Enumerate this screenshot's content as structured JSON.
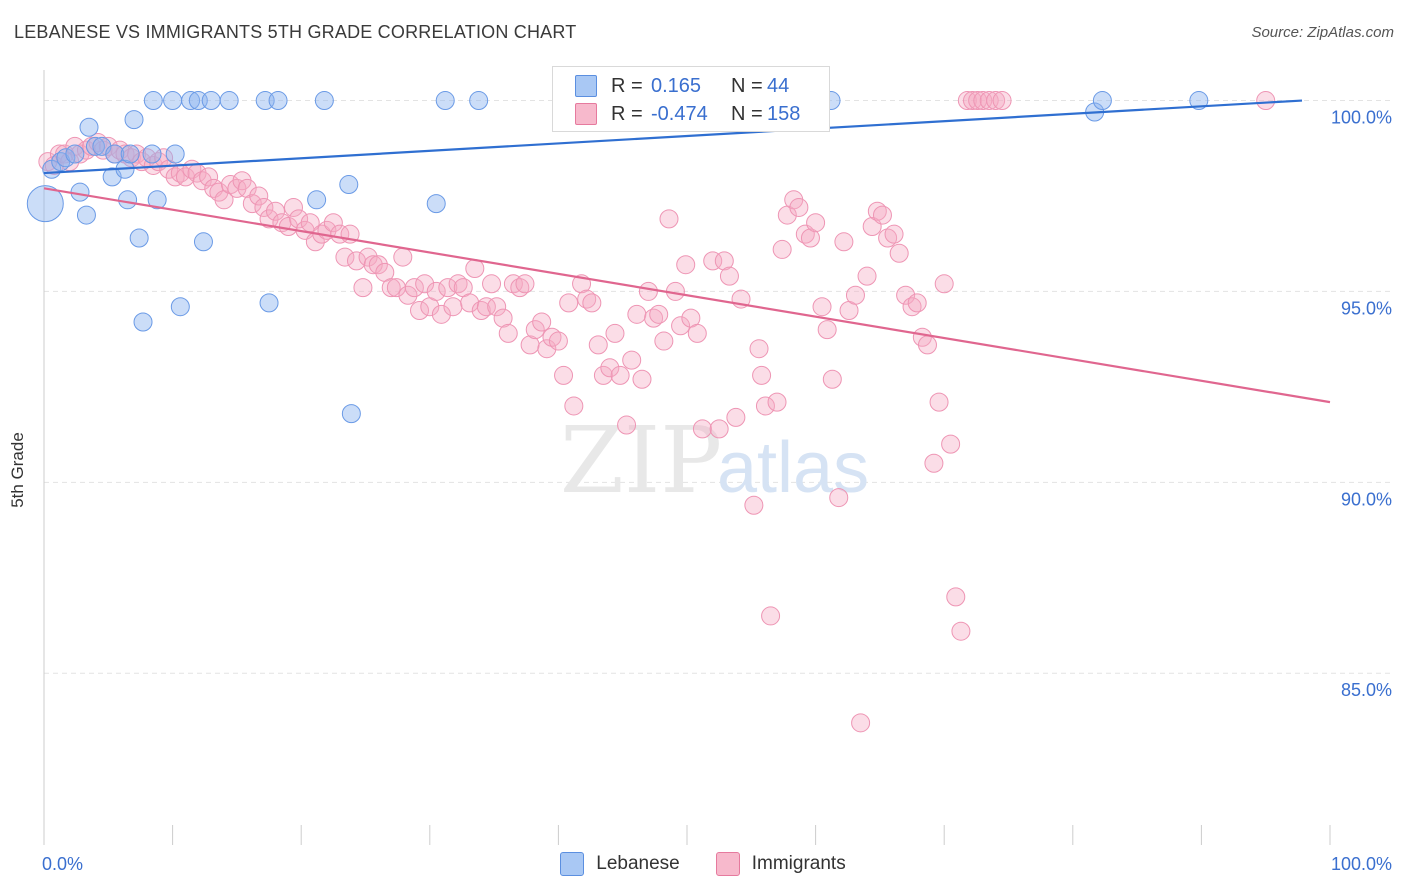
{
  "header": {
    "title": "LEBANESE VS IMMIGRANTS 5TH GRADE CORRELATION CHART",
    "source": "Source: ZipAtlas.com"
  },
  "watermark": {
    "zip": "ZIP",
    "atlas": "atlas"
  },
  "legend": {
    "rows": [
      {
        "r_label": "R =",
        "r_value": "0.165",
        "n_label": "N =",
        "n_value": "44",
        "color": "#a9c8f4",
        "border": "#5b8fe0"
      },
      {
        "r_label": "R =",
        "r_value": "-0.474",
        "n_label": "N =",
        "n_value": "158",
        "color": "#f7b9cc",
        "border": "#e67a9e"
      }
    ]
  },
  "bottom_legend": [
    {
      "label": "Lebanese",
      "color": "#a9c8f4",
      "border": "#5b8fe0"
    },
    {
      "label": "Immigrants",
      "color": "#f7b9cc",
      "border": "#e67a9e"
    }
  ],
  "chart_data": {
    "type": "scatter",
    "title": "LEBANESE VS IMMIGRANTS 5TH GRADE CORRELATION CHART",
    "xlabel": "",
    "ylabel": "5th Grade",
    "xlim": [
      0,
      100
    ],
    "ylim": [
      80.5,
      100.8
    ],
    "x_tick_labels": [
      {
        "v": 0,
        "label": "0.0%"
      },
      {
        "v": 100,
        "label": "100.0%"
      }
    ],
    "y_ticks": [
      {
        "v": 85,
        "label": "85.0%"
      },
      {
        "v": 90,
        "label": "90.0%"
      },
      {
        "v": 95,
        "label": "95.0%"
      },
      {
        "v": 100,
        "label": "100.0%"
      }
    ],
    "x_minor_ticks": [
      0,
      10,
      20,
      30,
      40,
      50,
      60,
      70,
      80,
      90,
      100
    ],
    "colors": {
      "lebanese_fill": "rgba(140,180,240,0.45)",
      "lebanese_stroke": "#6a9ae6",
      "lebanese_line": "#2f6fd1",
      "immigrants_fill": "rgba(245,170,195,0.40)",
      "immigrants_stroke": "#ee95b4",
      "immigrants_line": "#e0668f",
      "grid": "#e3e3e3",
      "tick_label": "#3a6fcf"
    },
    "series": [
      {
        "name": "Lebanese",
        "trend": {
          "x0": 0,
          "y0": 98.1,
          "x1": 100,
          "y1": 100.0
        },
        "points": [
          [
            0.1,
            97.3,
            2.0
          ],
          [
            0.6,
            98.2,
            1
          ],
          [
            1.3,
            98.4,
            1
          ],
          [
            1.7,
            98.5,
            1
          ],
          [
            2.4,
            98.6,
            1
          ],
          [
            2.8,
            97.6,
            1
          ],
          [
            3.3,
            97.0,
            1
          ],
          [
            3.5,
            99.3,
            1
          ],
          [
            4.0,
            98.8,
            1
          ],
          [
            4.5,
            98.8,
            1
          ],
          [
            5.5,
            98.6,
            1
          ],
          [
            5.3,
            98.0,
            1
          ],
          [
            6.3,
            98.2,
            1
          ],
          [
            6.7,
            98.6,
            1
          ],
          [
            6.5,
            97.4,
            1
          ],
          [
            7.0,
            99.5,
            1
          ],
          [
            7.4,
            96.4,
            1
          ],
          [
            7.7,
            94.2,
            1
          ],
          [
            8.4,
            98.6,
            1
          ],
          [
            8.5,
            100.0,
            1
          ],
          [
            8.8,
            97.4,
            1
          ],
          [
            10.0,
            100.0,
            1
          ],
          [
            10.2,
            98.6,
            1
          ],
          [
            10.6,
            94.6,
            1
          ],
          [
            11.4,
            100.0,
            1
          ],
          [
            12.0,
            100.0,
            1
          ],
          [
            12.4,
            96.3,
            1
          ],
          [
            13.0,
            100.0,
            1
          ],
          [
            14.4,
            100.0,
            1
          ],
          [
            17.2,
            100.0,
            1
          ],
          [
            17.5,
            94.7,
            1
          ],
          [
            18.2,
            100.0,
            1
          ],
          [
            21.2,
            97.4,
            1
          ],
          [
            21.8,
            100.0,
            1
          ],
          [
            23.7,
            97.8,
            1
          ],
          [
            23.9,
            91.8,
            1
          ],
          [
            30.5,
            97.3,
            1
          ],
          [
            31.2,
            100.0,
            1
          ],
          [
            33.8,
            100.0,
            1
          ],
          [
            56.0,
            99.7,
            1
          ],
          [
            61.2,
            100.0,
            1
          ],
          [
            81.7,
            99.7,
            1
          ],
          [
            82.3,
            100.0,
            1
          ],
          [
            89.8,
            100.0,
            1
          ]
        ]
      },
      {
        "name": "Immigrants",
        "trend": {
          "x0": 0,
          "y0": 97.7,
          "x1": 100,
          "y1": 92.1
        },
        "points": [
          [
            0.3,
            98.4
          ],
          [
            0.8,
            98.3
          ],
          [
            1.2,
            98.6
          ],
          [
            1.6,
            98.6
          ],
          [
            2.0,
            98.4
          ],
          [
            2.4,
            98.8
          ],
          [
            2.8,
            98.6
          ],
          [
            3.3,
            98.7
          ],
          [
            3.7,
            98.8
          ],
          [
            4.2,
            98.9
          ],
          [
            4.6,
            98.7
          ],
          [
            5.0,
            98.8
          ],
          [
            5.5,
            98.6
          ],
          [
            5.9,
            98.7
          ],
          [
            6.3,
            98.6
          ],
          [
            6.8,
            98.5
          ],
          [
            7.2,
            98.6
          ],
          [
            7.6,
            98.4
          ],
          [
            8.0,
            98.5
          ],
          [
            8.5,
            98.3
          ],
          [
            8.9,
            98.4
          ],
          [
            9.3,
            98.5
          ],
          [
            9.7,
            98.2
          ],
          [
            10.2,
            98.0
          ],
          [
            10.6,
            98.1
          ],
          [
            11.0,
            98.0
          ],
          [
            11.5,
            98.2
          ],
          [
            11.9,
            98.1
          ],
          [
            12.3,
            97.9
          ],
          [
            12.8,
            98.0
          ],
          [
            13.2,
            97.7
          ],
          [
            13.6,
            97.6
          ],
          [
            14.0,
            97.4
          ],
          [
            14.5,
            97.8
          ],
          [
            15.0,
            97.7
          ],
          [
            15.4,
            97.9
          ],
          [
            15.8,
            97.7
          ],
          [
            16.2,
            97.3
          ],
          [
            16.7,
            97.5
          ],
          [
            17.1,
            97.2
          ],
          [
            17.5,
            96.9
          ],
          [
            18.0,
            97.1
          ],
          [
            18.5,
            96.8
          ],
          [
            19.0,
            96.7
          ],
          [
            19.4,
            97.2
          ],
          [
            19.8,
            96.9
          ],
          [
            20.3,
            96.6
          ],
          [
            20.7,
            96.8
          ],
          [
            21.1,
            96.3
          ],
          [
            21.6,
            96.5
          ],
          [
            22.0,
            96.6
          ],
          [
            22.5,
            96.8
          ],
          [
            23.0,
            96.5
          ],
          [
            23.4,
            95.9
          ],
          [
            23.8,
            96.5
          ],
          [
            24.3,
            95.8
          ],
          [
            24.8,
            95.1
          ],
          [
            25.2,
            95.9
          ],
          [
            25.6,
            95.7
          ],
          [
            26.0,
            95.7
          ],
          [
            26.5,
            95.5
          ],
          [
            27.0,
            95.1
          ],
          [
            27.4,
            95.1
          ],
          [
            27.9,
            95.9
          ],
          [
            28.3,
            94.9
          ],
          [
            28.8,
            95.1
          ],
          [
            29.2,
            94.5
          ],
          [
            29.6,
            95.2
          ],
          [
            30.0,
            94.6
          ],
          [
            30.5,
            95.0
          ],
          [
            30.9,
            94.4
          ],
          [
            31.4,
            95.1
          ],
          [
            31.8,
            94.6
          ],
          [
            32.2,
            95.2
          ],
          [
            32.6,
            95.1
          ],
          [
            33.1,
            94.7
          ],
          [
            33.5,
            95.6
          ],
          [
            34.0,
            94.5
          ],
          [
            34.4,
            94.6
          ],
          [
            34.8,
            95.2
          ],
          [
            35.2,
            94.6
          ],
          [
            35.7,
            94.3
          ],
          [
            36.1,
            93.9
          ],
          [
            36.5,
            95.2
          ],
          [
            37.0,
            95.1
          ],
          [
            37.4,
            95.2
          ],
          [
            37.8,
            93.6
          ],
          [
            38.2,
            94.0
          ],
          [
            38.7,
            94.2
          ],
          [
            39.1,
            93.5
          ],
          [
            39.5,
            93.8
          ],
          [
            40.0,
            93.7
          ],
          [
            40.4,
            92.8
          ],
          [
            40.8,
            94.7
          ],
          [
            41.2,
            92.0
          ],
          [
            41.8,
            95.2
          ],
          [
            42.2,
            94.8
          ],
          [
            42.6,
            94.7
          ],
          [
            43.1,
            93.6
          ],
          [
            43.5,
            92.8
          ],
          [
            44.0,
            93.0
          ],
          [
            44.4,
            93.9
          ],
          [
            44.8,
            92.8
          ],
          [
            45.3,
            91.5
          ],
          [
            45.7,
            93.2
          ],
          [
            46.1,
            94.4
          ],
          [
            46.5,
            92.7
          ],
          [
            47.0,
            95.0
          ],
          [
            47.4,
            94.3
          ],
          [
            47.8,
            94.4
          ],
          [
            48.2,
            93.7
          ],
          [
            48.6,
            96.9
          ],
          [
            49.1,
            95.0
          ],
          [
            49.5,
            94.1
          ],
          [
            49.9,
            95.7
          ],
          [
            50.3,
            94.3
          ],
          [
            50.8,
            93.9
          ],
          [
            51.2,
            91.4
          ],
          [
            52.0,
            95.8
          ],
          [
            52.5,
            91.4
          ],
          [
            52.9,
            95.8
          ],
          [
            53.3,
            95.4
          ],
          [
            53.8,
            91.7
          ],
          [
            54.2,
            94.8
          ],
          [
            55.2,
            89.4
          ],
          [
            55.6,
            93.5
          ],
          [
            55.8,
            92.8
          ],
          [
            56.1,
            92.0
          ],
          [
            56.5,
            86.5
          ],
          [
            57.0,
            92.1
          ],
          [
            57.4,
            96.1
          ],
          [
            57.8,
            97.0
          ],
          [
            58.3,
            97.4
          ],
          [
            58.7,
            97.2
          ],
          [
            59.2,
            96.5
          ],
          [
            59.6,
            96.4
          ],
          [
            60.0,
            96.8
          ],
          [
            60.5,
            94.6
          ],
          [
            60.9,
            94.0
          ],
          [
            61.3,
            92.7
          ],
          [
            61.8,
            89.6
          ],
          [
            62.2,
            96.3
          ],
          [
            62.6,
            94.5
          ],
          [
            63.1,
            94.9
          ],
          [
            63.5,
            83.7
          ],
          [
            64.0,
            95.4
          ],
          [
            64.4,
            96.7
          ],
          [
            64.8,
            97.1
          ],
          [
            65.2,
            97.0
          ],
          [
            65.6,
            96.4
          ],
          [
            66.1,
            96.5
          ],
          [
            66.5,
            96.0
          ],
          [
            67.0,
            94.9
          ],
          [
            67.5,
            94.6
          ],
          [
            67.9,
            94.7
          ],
          [
            68.3,
            93.8
          ],
          [
            68.7,
            93.6
          ],
          [
            69.2,
            90.5
          ],
          [
            69.6,
            92.1
          ],
          [
            70.0,
            95.2
          ],
          [
            70.5,
            91.0
          ],
          [
            70.9,
            87.0
          ],
          [
            71.3,
            86.1
          ],
          [
            71.8,
            100.0
          ],
          [
            72.2,
            100.0
          ],
          [
            72.6,
            100.0
          ],
          [
            73.0,
            100.0
          ],
          [
            73.5,
            100.0
          ],
          [
            74.0,
            100.0
          ],
          [
            74.5,
            100.0
          ],
          [
            95.0,
            100.0
          ]
        ]
      }
    ]
  }
}
